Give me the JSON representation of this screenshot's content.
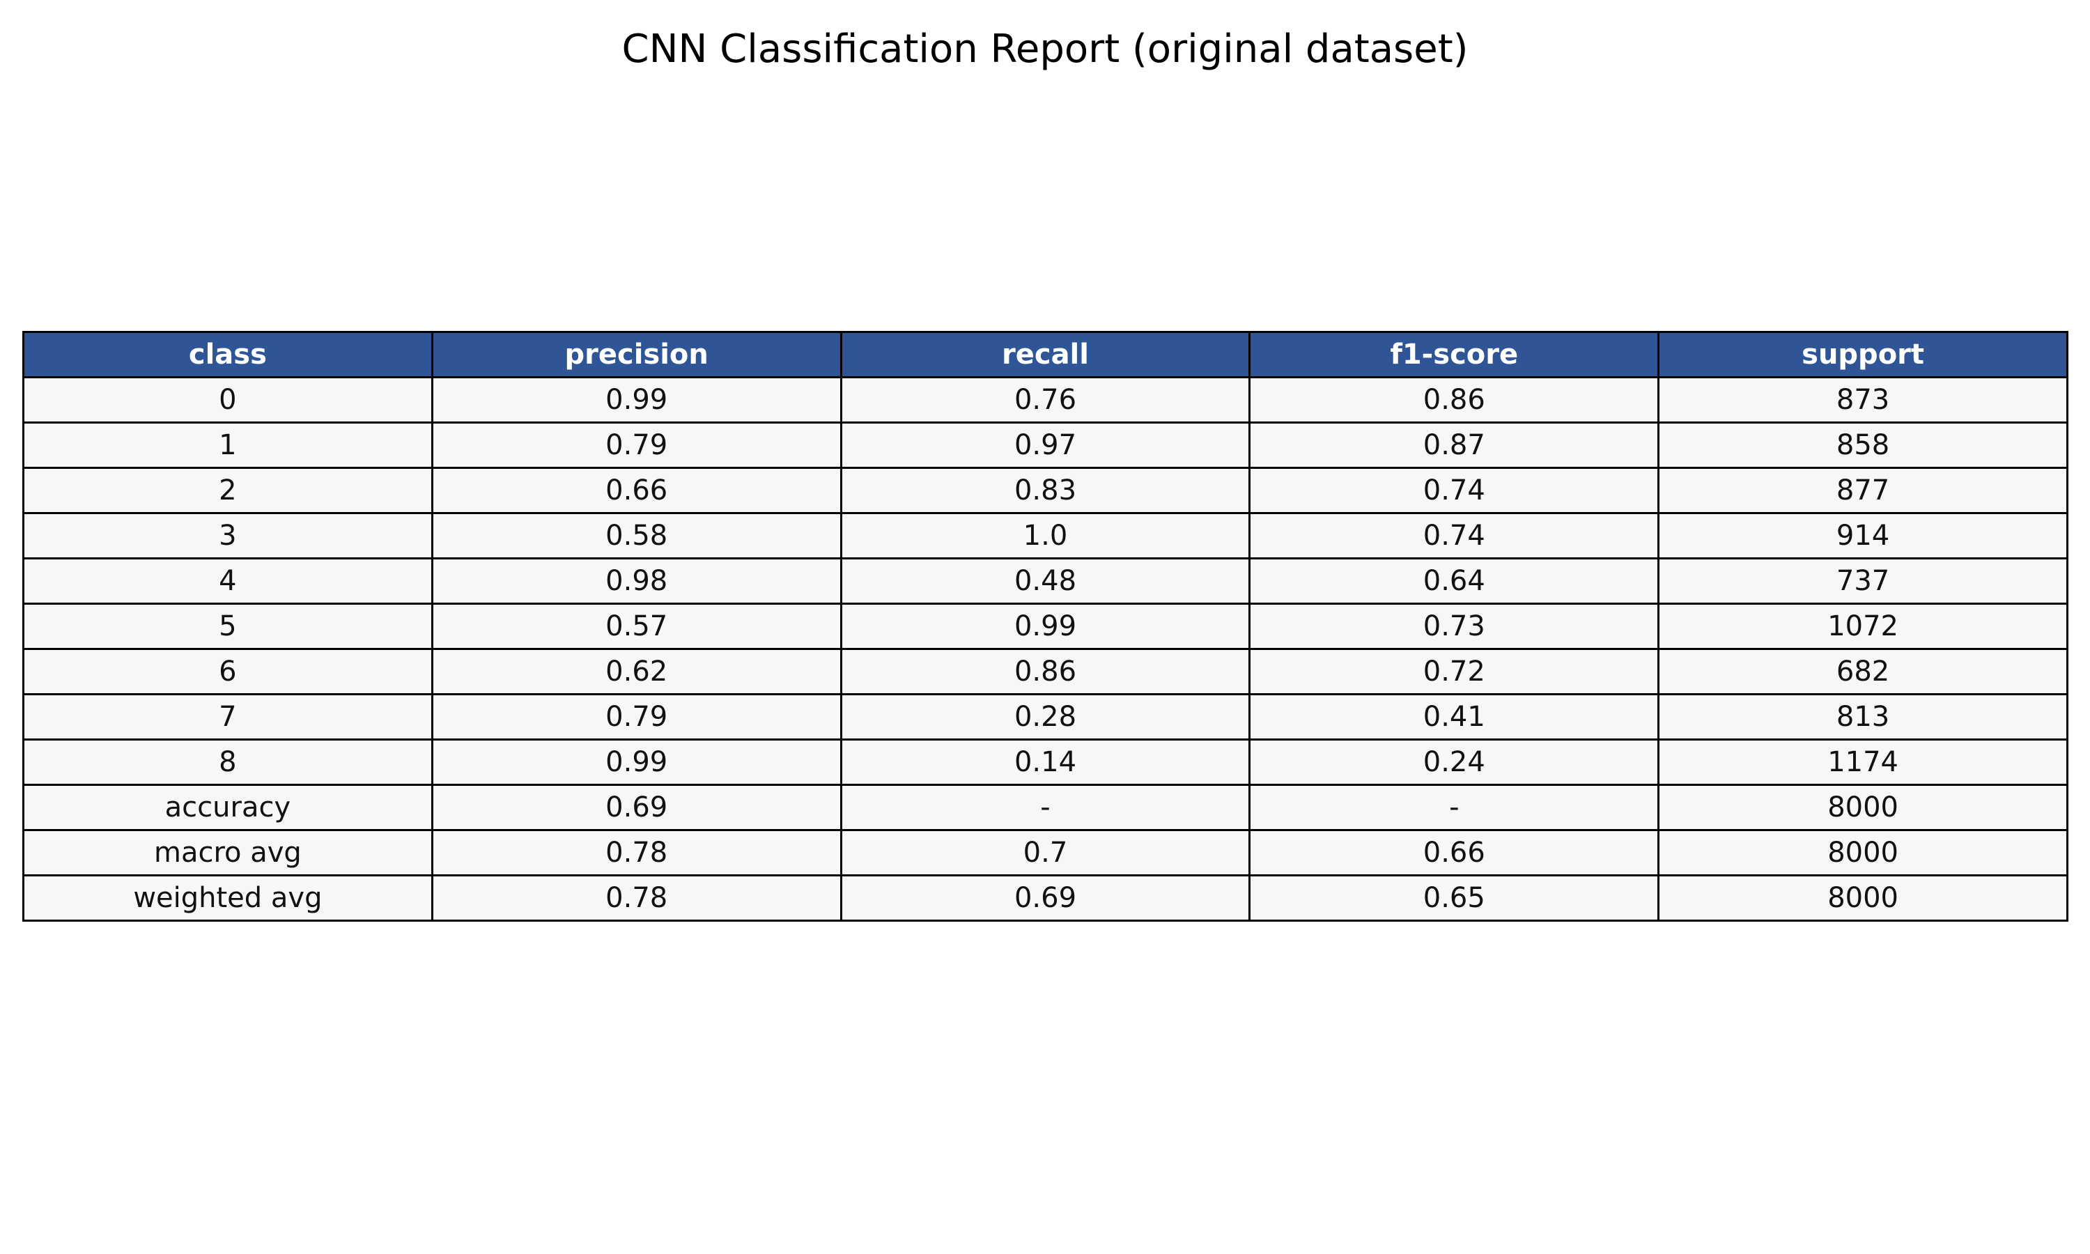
{
  "chart_data": {
    "type": "table",
    "title": "CNN Classification Report (original dataset)",
    "columns": [
      "class",
      "precision",
      "recall",
      "f1-score",
      "support"
    ],
    "rows": [
      [
        "0",
        "0.99",
        "0.76",
        "0.86",
        "873"
      ],
      [
        "1",
        "0.79",
        "0.97",
        "0.87",
        "858"
      ],
      [
        "2",
        "0.66",
        "0.83",
        "0.74",
        "877"
      ],
      [
        "3",
        "0.58",
        "1.0",
        "0.74",
        "914"
      ],
      [
        "4",
        "0.98",
        "0.48",
        "0.64",
        "737"
      ],
      [
        "5",
        "0.57",
        "0.99",
        "0.73",
        "1072"
      ],
      [
        "6",
        "0.62",
        "0.86",
        "0.72",
        "682"
      ],
      [
        "7",
        "0.79",
        "0.28",
        "0.41",
        "813"
      ],
      [
        "8",
        "0.99",
        "0.14",
        "0.24",
        "1174"
      ],
      [
        "accuracy",
        "0.69",
        "-",
        "-",
        "8000"
      ],
      [
        "macro avg",
        "0.78",
        "0.7",
        "0.66",
        "8000"
      ],
      [
        "weighted avg",
        "0.78",
        "0.69",
        "0.65",
        "8000"
      ]
    ],
    "colors": {
      "header_background": "#2f5597",
      "header_text": "#ffffff",
      "cell_background": "#f7f7f7",
      "border": "#000000"
    }
  }
}
